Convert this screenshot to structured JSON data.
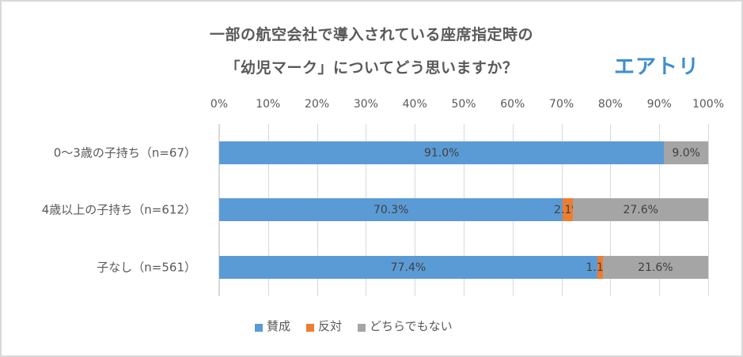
{
  "title": {
    "line1": "一部の航空会社で導入されている座席指定時の",
    "line2": "「幼児マーク」についてどう思いますか？"
  },
  "logo": {
    "text": "エアトリ",
    "color": "#3d8fd1"
  },
  "axis": {
    "ticks": [
      "0%",
      "10%",
      "20%",
      "30%",
      "40%",
      "50%",
      "60%",
      "70%",
      "80%",
      "90%",
      "100%"
    ]
  },
  "legend": [
    {
      "label": "賛成",
      "color": "#5b9bd5"
    },
    {
      "label": "反対",
      "color": "#ed7d31"
    },
    {
      "label": "どちらでもない",
      "color": "#a5a5a5"
    }
  ],
  "rows": [
    {
      "category": "0～3歳の子持ち（n=67）",
      "segments": [
        {
          "value": 91.0,
          "label": "91.0%"
        },
        {
          "value": 0.0,
          "label": ""
        },
        {
          "value": 9.0,
          "label": "9.0%"
        }
      ]
    },
    {
      "category": "4歳以上の子持ち（n=612）",
      "segments": [
        {
          "value": 70.3,
          "label": "70.3%"
        },
        {
          "value": 2.1,
          "label": "2.1%"
        },
        {
          "value": 27.6,
          "label": "27.6%"
        }
      ]
    },
    {
      "category": "子なし（n=561）",
      "segments": [
        {
          "value": 77.4,
          "label": "77.4%"
        },
        {
          "value": 1.1,
          "label": "1.1%"
        },
        {
          "value": 21.6,
          "label": "21.6%"
        }
      ]
    }
  ],
  "chart_data": {
    "type": "bar",
    "orientation": "horizontal",
    "stacked": "100%",
    "title": "一部の航空会社で導入されている座席指定時の「幼児マーク」についてどう思いますか？",
    "categories": [
      "0～3歳の子持ち（n=67）",
      "4歳以上の子持ち（n=612）",
      "子なし（n=561）"
    ],
    "series": [
      {
        "name": "賛成",
        "color": "#5b9bd5",
        "values": [
          91.0,
          70.3,
          77.4
        ]
      },
      {
        "name": "反対",
        "color": "#ed7d31",
        "values": [
          0.0,
          2.1,
          1.1
        ]
      },
      {
        "name": "どちらでもない",
        "color": "#a5a5a5",
        "values": [
          9.0,
          27.6,
          21.6
        ]
      }
    ],
    "xlabel": "",
    "ylabel": "",
    "xlim": [
      0,
      100
    ],
    "xticks": [
      "0%",
      "10%",
      "20%",
      "30%",
      "40%",
      "50%",
      "60%",
      "70%",
      "80%",
      "90%",
      "100%"
    ],
    "xaxis_position": "top",
    "grid": true,
    "legend_position": "bottom",
    "data_labels": true
  }
}
